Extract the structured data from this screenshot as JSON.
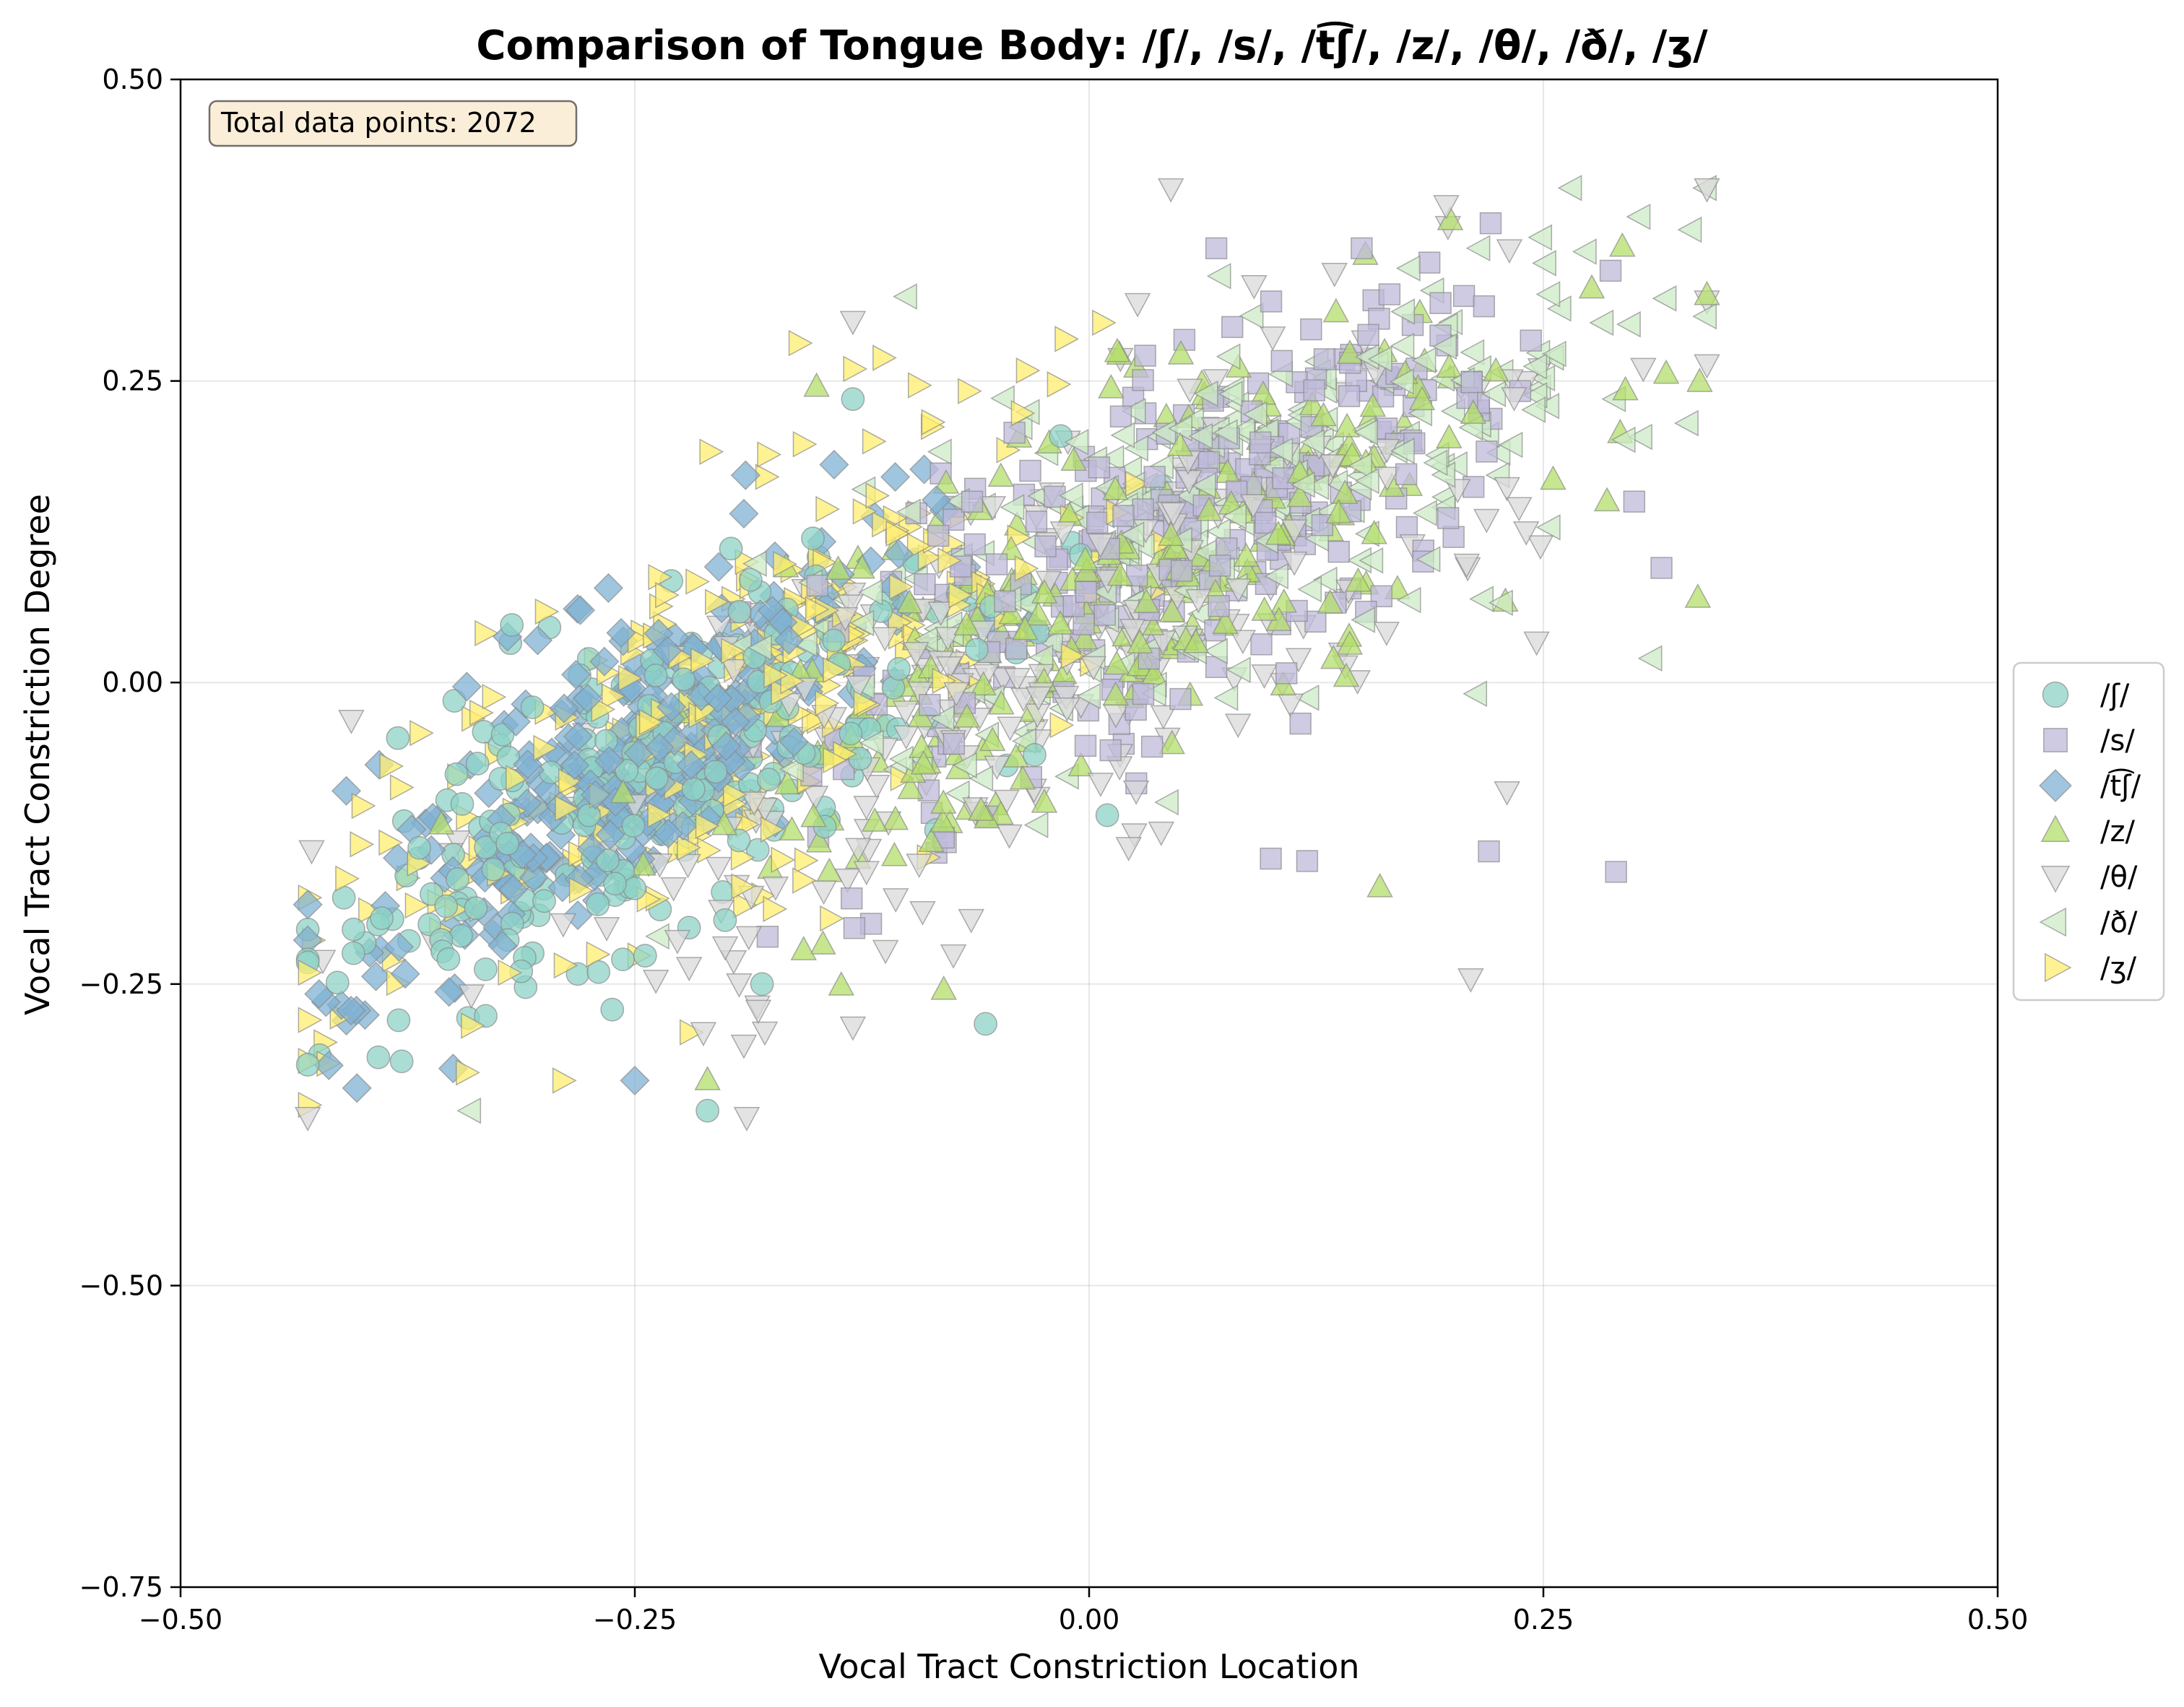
{
  "chart_data": {
    "type": "scatter",
    "title": "Comparison of Tongue Body: /ʃ/, /s/, /t͡ʃ/, /z/, /θ/, /ð/, /ʒ/",
    "xlabel": "Vocal Tract Constriction Location",
    "ylabel": "Vocal Tract Constriction Degree",
    "xlim": [
      -0.5,
      0.5
    ],
    "ylim": [
      -0.75,
      0.5
    ],
    "xticks": [
      -0.5,
      -0.25,
      0.0,
      0.25,
      0.5
    ],
    "yticks": [
      -0.75,
      -0.5,
      -0.25,
      0.0,
      0.25,
      0.5
    ],
    "xtick_labels": [
      "−0.50",
      "−0.25",
      "0.00",
      "0.25",
      "0.50"
    ],
    "ytick_labels": [
      "−0.75",
      "−0.50",
      "−0.25",
      "0.00",
      "0.25",
      "0.50"
    ],
    "grid": true,
    "legend_position": "right",
    "annotation": "Total data points: 2072",
    "series": [
      {
        "name": "/ʃ/",
        "marker": "circle",
        "color": "#8dd3c7",
        "n": 296,
        "center": [
          -0.24,
          -0.08
        ],
        "spread": [
          0.09,
          0.1
        ],
        "points": [
          [
            -0.13,
            0.235
          ],
          [
            -0.21,
            -0.355
          ],
          [
            -0.057,
            -0.283
          ],
          [
            -0.38,
            -0.28
          ],
          [
            -0.27,
            -0.24
          ],
          [
            -0.18,
            -0.25
          ],
          [
            -0.03,
            -0.06
          ],
          [
            0.01,
            -0.11
          ]
        ]
      },
      {
        "name": "/s/",
        "marker": "square",
        "color": "#bebada",
        "n": 296,
        "center": [
          0.05,
          0.12
        ],
        "spread": [
          0.1,
          0.11
        ],
        "points": [
          [
            0.29,
            -0.157
          ],
          [
            0.315,
            0.095
          ],
          [
            0.3,
            0.15
          ],
          [
            0.22,
            -0.14
          ],
          [
            0.12,
            -0.148
          ],
          [
            0.1,
            -0.146
          ],
          [
            0.15,
            0.36
          ],
          [
            0.07,
            0.36
          ],
          [
            -0.12,
            -0.2
          ]
        ]
      },
      {
        "name": "/t͡ʃ/",
        "marker": "diamond",
        "color": "#80b1d3",
        "n": 296,
        "center": [
          -0.25,
          -0.06
        ],
        "spread": [
          0.07,
          0.09
        ],
        "points": [
          [
            -0.42,
            -0.265
          ],
          [
            -0.25,
            -0.33
          ],
          [
            -0.28,
            0.06
          ],
          [
            -0.35,
            -0.32
          ],
          [
            -0.19,
            0.14
          ]
        ]
      },
      {
        "name": "/z/",
        "marker": "triangle-up",
        "color": "#b3de69",
        "n": 296,
        "center": [
          0.02,
          0.08
        ],
        "spread": [
          0.12,
          0.12
        ],
        "points": [
          [
            0.335,
            0.07
          ],
          [
            0.285,
            0.15
          ],
          [
            0.16,
            -0.17
          ],
          [
            -0.21,
            -0.33
          ],
          [
            -0.08,
            -0.255
          ],
          [
            -0.15,
            0.245
          ]
        ]
      },
      {
        "name": "/θ/",
        "marker": "triangle-down",
        "color": "#d9d9d9",
        "n": 296,
        "center": [
          -0.03,
          0.02
        ],
        "spread": [
          0.15,
          0.14
        ],
        "points": [
          [
            0.045,
            0.41
          ],
          [
            0.21,
            -0.245
          ],
          [
            -0.13,
            -0.285
          ],
          [
            -0.19,
            -0.3
          ],
          [
            0.23,
            -0.09
          ],
          [
            -0.13,
            0.3
          ]
        ]
      },
      {
        "name": "/ð/",
        "marker": "triangle-left",
        "color": "#ccebc5",
        "n": 296,
        "center": [
          0.08,
          0.15
        ],
        "spread": [
          0.12,
          0.11
        ],
        "points": [
          [
            0.33,
            0.215
          ],
          [
            0.29,
            0.235
          ],
          [
            0.26,
            0.31
          ],
          [
            0.31,
            0.02
          ],
          [
            -0.34,
            -0.355
          ],
          [
            -0.1,
            0.32
          ],
          [
            0.19,
            0.325
          ]
        ]
      },
      {
        "name": "/ʒ/",
        "marker": "triangle-right",
        "color": "#ffed6f",
        "n": 296,
        "center": [
          -0.2,
          -0.02
        ],
        "spread": [
          0.11,
          0.12
        ],
        "points": [
          [
            -0.13,
            0.26
          ],
          [
            -0.34,
            -0.03
          ],
          [
            -0.37,
            -0.15
          ],
          [
            -0.29,
            -0.33
          ],
          [
            -0.22,
            -0.29
          ]
        ]
      }
    ]
  }
}
